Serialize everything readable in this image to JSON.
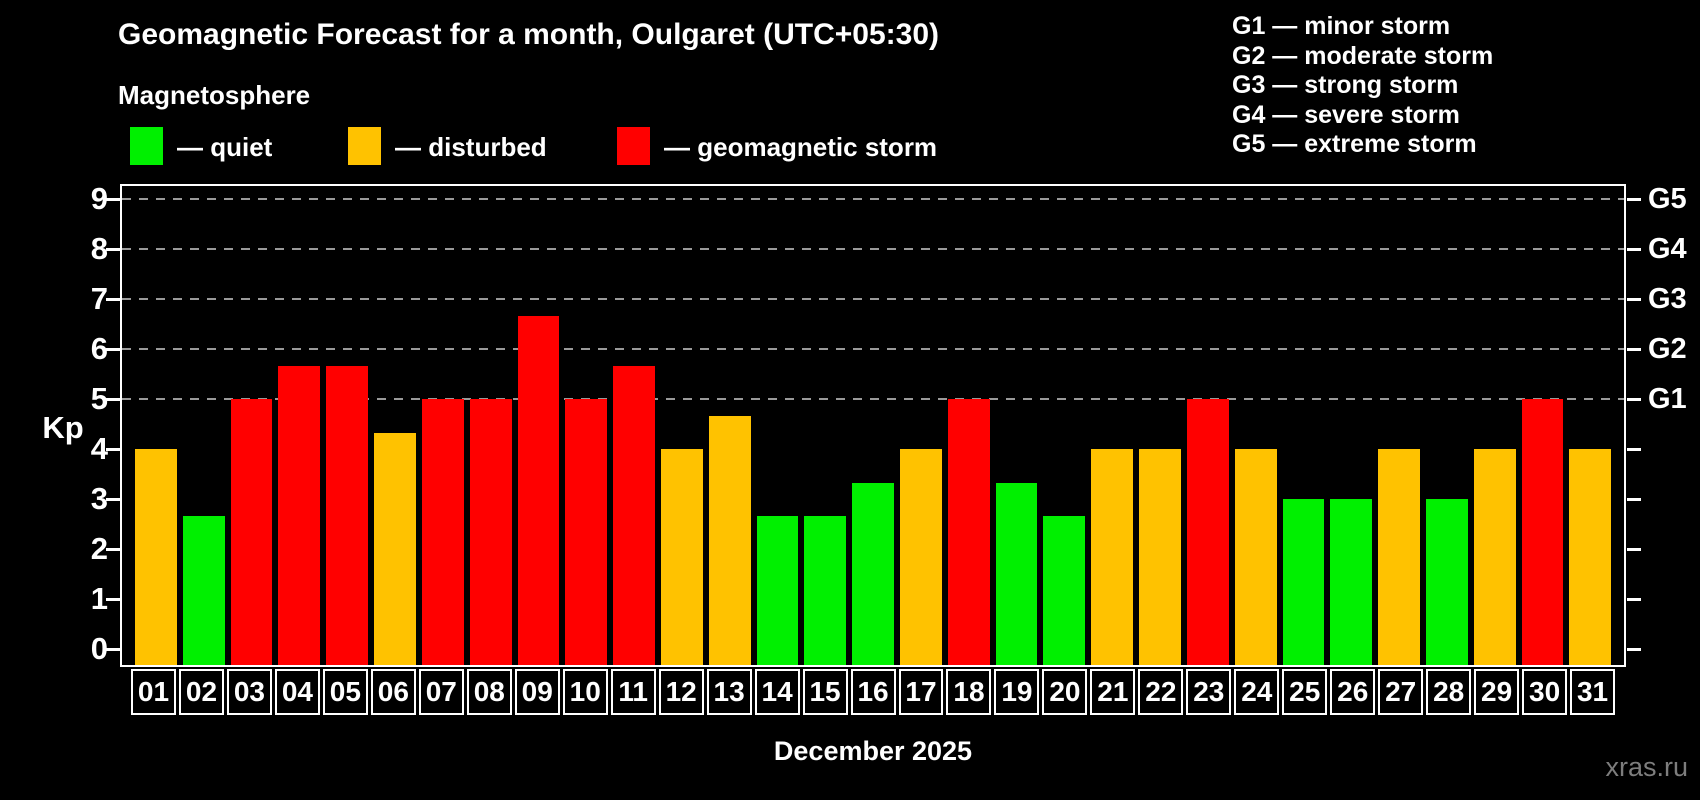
{
  "header": {
    "title": "Geomagnetic Forecast for a month, Oulgaret (UTC+05:30)",
    "subtitle": "Magnetosphere",
    "legend": [
      {
        "label": "— quiet",
        "category": "quiet"
      },
      {
        "label": "— disturbed",
        "category": "disturbed"
      },
      {
        "label": "— geomagnetic storm",
        "category": "storm"
      }
    ],
    "g_scale_legend": [
      "G1 — minor storm",
      "G2 — moderate storm",
      "G3 — strong storm",
      "G4 — severe storm",
      "G5 — extreme storm"
    ]
  },
  "colors": {
    "quiet": "#00f000",
    "disturbed": "#ffc200",
    "storm": "#ff0000",
    "background": "#000000",
    "axis": "#ffffff",
    "gridline": "#9a9a9a",
    "watermark": "#7d7d7d"
  },
  "chart_data": {
    "type": "bar",
    "title": "Geomagnetic Forecast for a month, Oulgaret (UTC+05:30)",
    "subtitle": "Magnetosphere",
    "xlabel": "December 2025",
    "ylabel": "Kp",
    "ylim": [
      0,
      9
    ],
    "y_ticks": [
      0,
      1,
      2,
      3,
      4,
      5,
      6,
      7,
      8,
      9
    ],
    "gridlines_at": [
      5,
      6,
      7,
      8,
      9
    ],
    "grid_style": "horizontal dashed lines at Kp 5-9 only",
    "legend_position": "top-left row and top-right G-scale list",
    "right_axis": [
      {
        "kp": 5,
        "label": "G1"
      },
      {
        "kp": 6,
        "label": "G2"
      },
      {
        "kp": 7,
        "label": "G3"
      },
      {
        "kp": 8,
        "label": "G4"
      },
      {
        "kp": 9,
        "label": "G5"
      }
    ],
    "days": [
      {
        "day": "01",
        "kp": 4.0,
        "state": "disturbed"
      },
      {
        "day": "02",
        "kp": 2.67,
        "state": "quiet"
      },
      {
        "day": "03",
        "kp": 5.0,
        "state": "storm"
      },
      {
        "day": "04",
        "kp": 5.67,
        "state": "storm"
      },
      {
        "day": "05",
        "kp": 5.67,
        "state": "storm"
      },
      {
        "day": "06",
        "kp": 4.33,
        "state": "disturbed"
      },
      {
        "day": "07",
        "kp": 5.0,
        "state": "storm"
      },
      {
        "day": "08",
        "kp": 5.0,
        "state": "storm"
      },
      {
        "day": "09",
        "kp": 6.67,
        "state": "storm"
      },
      {
        "day": "10",
        "kp": 5.0,
        "state": "storm"
      },
      {
        "day": "11",
        "kp": 5.67,
        "state": "storm"
      },
      {
        "day": "12",
        "kp": 4.0,
        "state": "disturbed"
      },
      {
        "day": "13",
        "kp": 4.67,
        "state": "disturbed"
      },
      {
        "day": "14",
        "kp": 2.67,
        "state": "quiet"
      },
      {
        "day": "15",
        "kp": 2.67,
        "state": "quiet"
      },
      {
        "day": "16",
        "kp": 3.33,
        "state": "quiet"
      },
      {
        "day": "17",
        "kp": 4.0,
        "state": "disturbed"
      },
      {
        "day": "18",
        "kp": 5.0,
        "state": "storm"
      },
      {
        "day": "19",
        "kp": 3.33,
        "state": "quiet"
      },
      {
        "day": "20",
        "kp": 2.67,
        "state": "quiet"
      },
      {
        "day": "21",
        "kp": 4.0,
        "state": "disturbed"
      },
      {
        "day": "22",
        "kp": 4.0,
        "state": "disturbed"
      },
      {
        "day": "23",
        "kp": 5.0,
        "state": "storm"
      },
      {
        "day": "24",
        "kp": 4.0,
        "state": "disturbed"
      },
      {
        "day": "25",
        "kp": 3.0,
        "state": "quiet"
      },
      {
        "day": "26",
        "kp": 3.0,
        "state": "quiet"
      },
      {
        "day": "27",
        "kp": 4.0,
        "state": "disturbed"
      },
      {
        "day": "28",
        "kp": 3.0,
        "state": "quiet"
      },
      {
        "day": "29",
        "kp": 4.0,
        "state": "disturbed"
      },
      {
        "day": "30",
        "kp": 5.0,
        "state": "storm"
      },
      {
        "day": "31",
        "kp": 4.0,
        "state": "disturbed"
      }
    ]
  },
  "footer": {
    "xlabel": "December 2025",
    "watermark": "xras.ru"
  }
}
